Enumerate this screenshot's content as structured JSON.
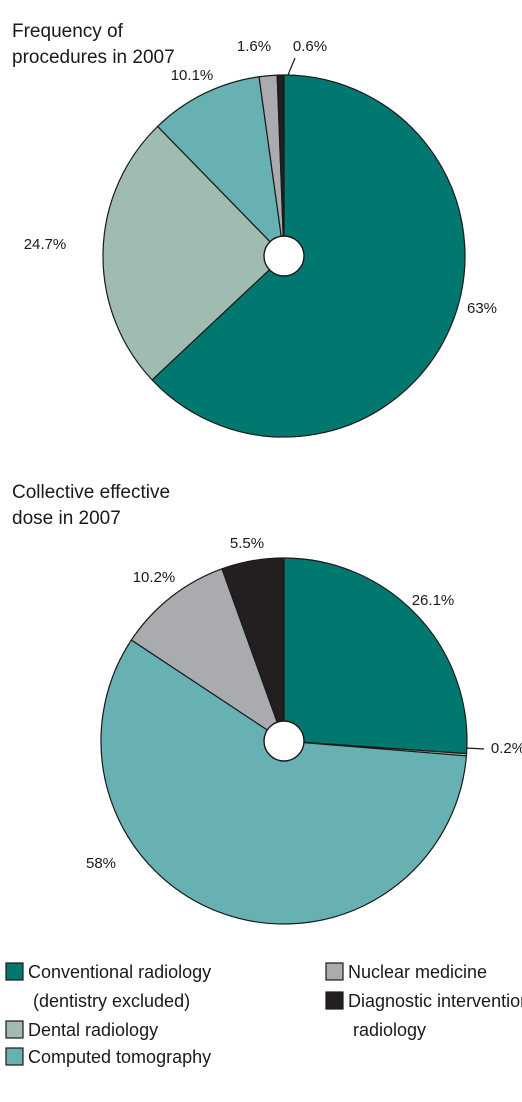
{
  "colors": {
    "conventional": "#00786f",
    "dental": "#a0bcb0",
    "computed": "#68b1b3",
    "nuclear": "#a9abae",
    "interventional": "#231f20",
    "outline": "#1a1a1a"
  },
  "chart_data": [
    {
      "type": "pie",
      "title_lines": [
        "Frequency of",
        "procedures in 2007"
      ],
      "slices": [
        {
          "key": "conventional",
          "value": 63,
          "label": "63%"
        },
        {
          "key": "dental",
          "value": 24.7,
          "label": "24.7%"
        },
        {
          "key": "computed",
          "value": 10.1,
          "label": "10.1%"
        },
        {
          "key": "nuclear",
          "value": 1.6,
          "label": "1.6%"
        },
        {
          "key": "interventional",
          "value": 0.6,
          "label": "0.6%"
        }
      ]
    },
    {
      "type": "pie",
      "title_lines": [
        "Collective effective",
        "dose in 2007"
      ],
      "slices": [
        {
          "key": "conventional",
          "value": 26.1,
          "label": "26.1%"
        },
        {
          "key": "dental",
          "value": 0.2,
          "label": "0.2%"
        },
        {
          "key": "computed",
          "value": 58,
          "label": "58%"
        },
        {
          "key": "nuclear",
          "value": 10.2,
          "label": "10.2%"
        },
        {
          "key": "interventional",
          "value": 5.5,
          "label": "5.5%"
        }
      ]
    }
  ],
  "legend": {
    "items": [
      {
        "key": "conventional",
        "lines": [
          "Conventional radiology",
          "(dentistry excluded)"
        ]
      },
      {
        "key": "dental",
        "lines": [
          "Dental radiology"
        ]
      },
      {
        "key": "computed",
        "lines": [
          "Computed tomography"
        ]
      },
      {
        "key": "nuclear",
        "lines": [
          "Nuclear medicine"
        ]
      },
      {
        "key": "interventional",
        "lines": [
          "Diagnostic interventional",
          "radiology"
        ]
      }
    ]
  }
}
